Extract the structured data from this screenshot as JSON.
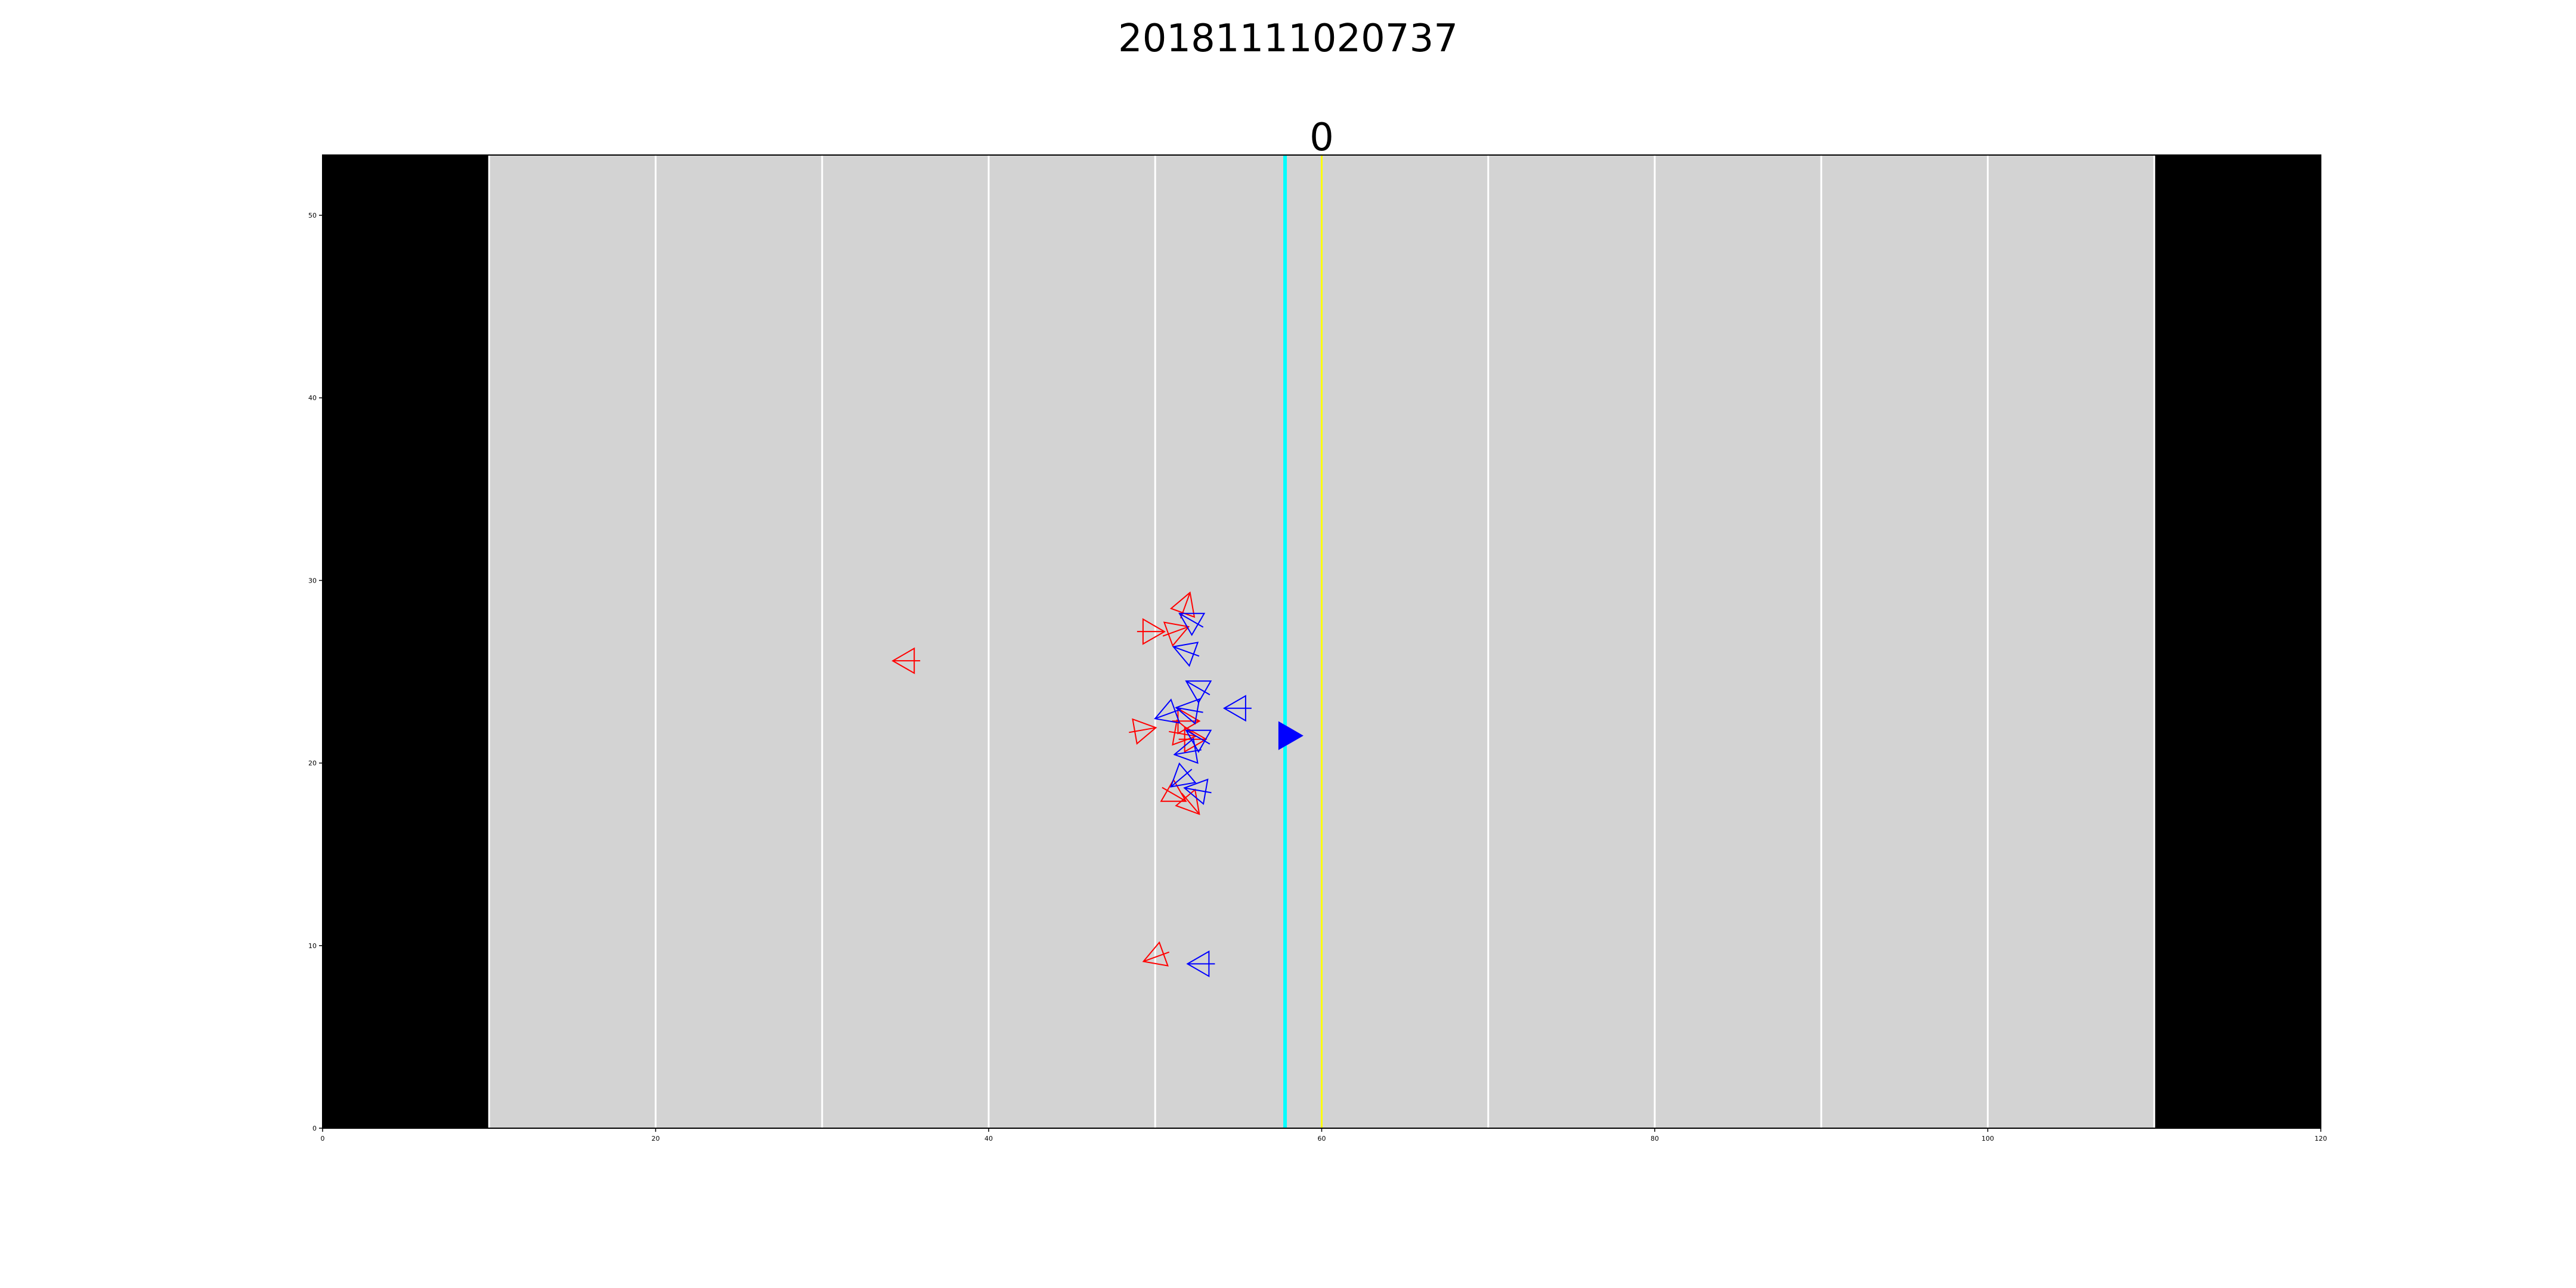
{
  "title": "20181111020737",
  "chart_data": {
    "type": "scatter",
    "title": "20181111020737",
    "subtitle": "0",
    "xlim": [
      0,
      120
    ],
    "ylim": [
      0,
      53.3
    ],
    "x_ticks": [
      0,
      20,
      40,
      60,
      80,
      100,
      120
    ],
    "y_ticks": [
      0,
      10,
      20,
      30,
      40,
      50
    ],
    "grid": false,
    "endzones": [
      [
        0,
        10
      ],
      [
        110,
        120
      ]
    ],
    "yard_lines": [
      10,
      20,
      30,
      40,
      50,
      60,
      70,
      80,
      90,
      100,
      110
    ],
    "line_of_scrimmage": 57.8,
    "first_down_line": 60,
    "colors": {
      "field": "#d3d3d3",
      "endzone": "#000000",
      "yard_line": "#ffffff",
      "line_of_scrimmage": "#00ffff",
      "first_down_line": "#ffff00",
      "offense": "#ff0000",
      "defense": "#0000ff",
      "ball": "#0000ff"
    },
    "ball": {
      "x": 57.9,
      "y": 21.5
    },
    "series": [
      {
        "team": "offense",
        "color": "#ff0000",
        "points": [
          {
            "x": 35.1,
            "y": 25.6,
            "dir": 270
          },
          {
            "x": 51.8,
            "y": 28.6,
            "dir": 20
          },
          {
            "x": 49.7,
            "y": 27.2,
            "dir": 90
          },
          {
            "x": 51.2,
            "y": 27.2,
            "dir": 70
          },
          {
            "x": 49.2,
            "y": 21.8,
            "dir": 80
          },
          {
            "x": 51.8,
            "y": 22.3,
            "dir": 90
          },
          {
            "x": 51.6,
            "y": 21.6,
            "dir": 100
          },
          {
            "x": 52.2,
            "y": 21.3,
            "dir": 90
          },
          {
            "x": 51.1,
            "y": 18.3,
            "dir": 120
          },
          {
            "x": 52.1,
            "y": 17.8,
            "dir": 140
          },
          {
            "x": 50.1,
            "y": 9.4,
            "dir": 250
          }
        ]
      },
      {
        "team": "defense",
        "color": "#0000ff",
        "points": [
          {
            "x": 52.2,
            "y": 27.8,
            "dir": 300
          },
          {
            "x": 51.9,
            "y": 26.1,
            "dir": 290
          },
          {
            "x": 52.6,
            "y": 24.1,
            "dir": 300
          },
          {
            "x": 52.1,
            "y": 22.9,
            "dir": 280
          },
          {
            "x": 55.0,
            "y": 23.0,
            "dir": 270
          },
          {
            "x": 50.8,
            "y": 22.7,
            "dir": 250
          },
          {
            "x": 52.6,
            "y": 21.4,
            "dir": 300
          },
          {
            "x": 52.0,
            "y": 20.6,
            "dir": 260
          },
          {
            "x": 51.6,
            "y": 19.2,
            "dir": 230
          },
          {
            "x": 52.6,
            "y": 18.5,
            "dir": 280
          },
          {
            "x": 52.8,
            "y": 9.0,
            "dir": 270
          }
        ]
      }
    ]
  }
}
